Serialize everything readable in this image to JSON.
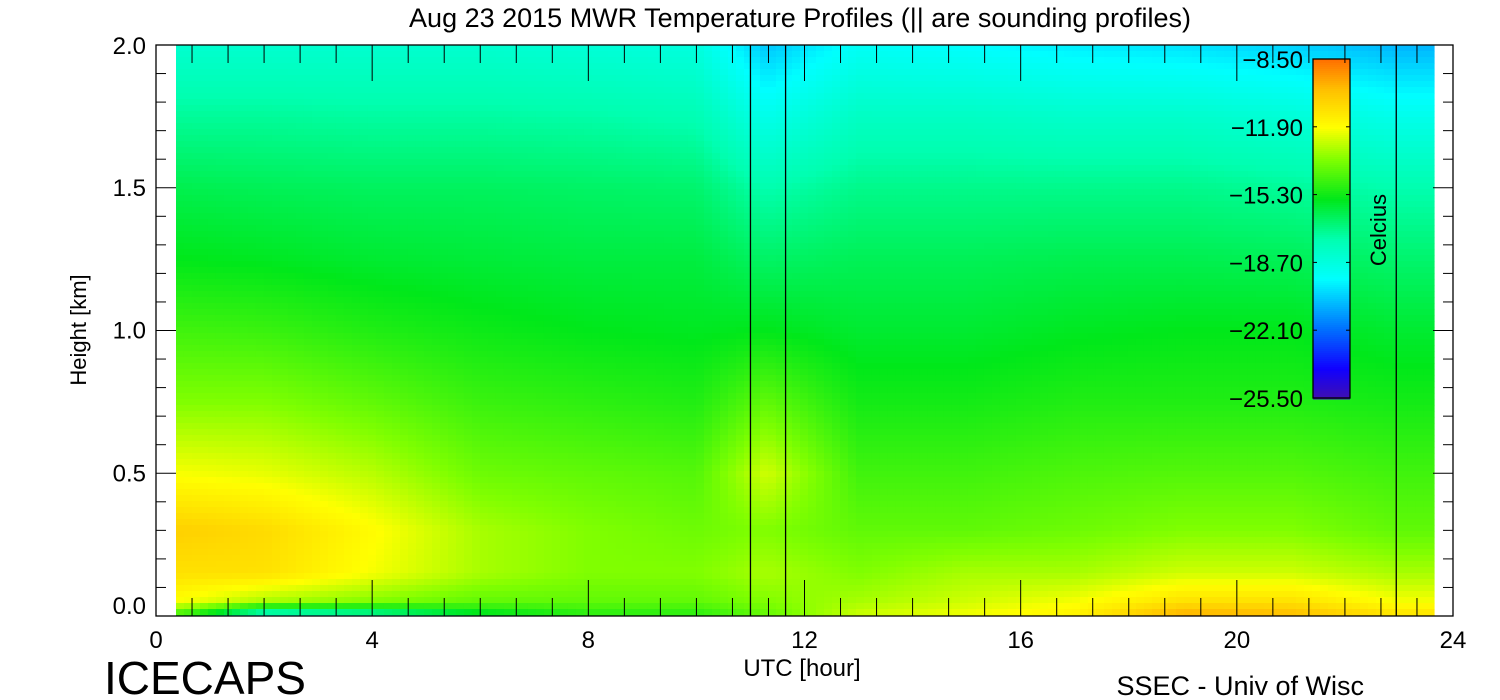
{
  "chart_data": {
    "type": "heatmap",
    "title": "Aug 23 2015 MWR Temperature Profiles (|| are sounding profiles)",
    "xlabel": "UTC [hour]",
    "ylabel": "Height [km]",
    "xlim": [
      0,
      24
    ],
    "ylim": [
      0,
      2.0
    ],
    "xticks": [
      "0",
      "4",
      "8",
      "12",
      "16",
      "20",
      "24"
    ],
    "yticks": [
      "0.0",
      "0.5",
      "1.0",
      "1.5",
      "2.0"
    ],
    "data_range_hours": [
      0.37,
      23.65
    ],
    "gap_hours": [
      11.0,
      11.65
    ],
    "sounding_profile_hours": [
      11.0,
      11.65,
      22.95
    ],
    "x": [
      0.5,
      2,
      4,
      6,
      8,
      10,
      11.3,
      13,
      15,
      17,
      19,
      21,
      23
    ],
    "heights": [
      0.0,
      0.05,
      0.15,
      0.3,
      0.5,
      0.75,
      1.0,
      1.25,
      1.5,
      1.75,
      2.0
    ],
    "values": [
      [
        -15,
        -19,
        -18,
        -16,
        -15,
        -15,
        -14,
        -12.5,
        -12,
        -11.5,
        -9.5,
        -9.8,
        -11
      ],
      [
        -12,
        -13,
        -13.5,
        -14,
        -14,
        -14,
        -13.5,
        -13,
        -12.5,
        -12,
        -11,
        -11,
        -12
      ],
      [
        -11,
        -11,
        -12,
        -13,
        -13.5,
        -13.5,
        -13,
        -13.5,
        -13,
        -13,
        -12.5,
        -12.5,
        -13
      ],
      [
        -10.5,
        -10.8,
        -11.8,
        -13,
        -13.5,
        -13.8,
        -13.5,
        -14,
        -14,
        -13.8,
        -13.5,
        -13.5,
        -14
      ],
      [
        -12,
        -12.2,
        -12.8,
        -13.8,
        -14,
        -14.2,
        -12.5,
        -14.5,
        -14.5,
        -14.3,
        -14.2,
        -14.2,
        -14.5
      ],
      [
        -13.5,
        -13.5,
        -14,
        -14.6,
        -14.8,
        -15,
        -14,
        -15.2,
        -15.2,
        -15,
        -15,
        -15,
        -15.2
      ],
      [
        -14.5,
        -14.6,
        -15,
        -15.3,
        -15.5,
        -15.6,
        -15.5,
        -15.8,
        -15.8,
        -15.6,
        -15.5,
        -15.5,
        -15.8
      ],
      [
        -15.5,
        -15.6,
        -15.8,
        -15.9,
        -16,
        -16,
        -16.5,
        -16.3,
        -16.3,
        -16.2,
        -16.2,
        -16.3,
        -16.6
      ],
      [
        -16.2,
        -16.3,
        -16.4,
        -16.4,
        -16.5,
        -16.6,
        -17.5,
        -17,
        -17,
        -17,
        -17,
        -17.2,
        -17.5
      ],
      [
        -17.2,
        -17.2,
        -17.3,
        -17.3,
        -17.4,
        -17.6,
        -19,
        -18,
        -18,
        -18.2,
        -18.2,
        -18.5,
        -19
      ],
      [
        -18.3,
        -18.3,
        -18.3,
        -18.3,
        -18.5,
        -18.7,
        -20.5,
        -19.3,
        -19.5,
        -19.8,
        -20,
        -20.3,
        -20.8
      ]
    ],
    "colorbar": {
      "label": "Celcius",
      "range": [
        -25.5,
        -8.5
      ],
      "tick_labels": [
        "-8.50",
        "-11.90",
        "-15.30",
        "-18.70",
        "-22.10",
        "-25.50"
      ],
      "stops": [
        [
          -25.5,
          "#4010b0"
        ],
        [
          -24.0,
          "#1000ff"
        ],
        [
          -22.0,
          "#0070ff"
        ],
        [
          -19.5,
          "#00ffff"
        ],
        [
          -17.5,
          "#00ffb0"
        ],
        [
          -15.5,
          "#00e81a"
        ],
        [
          -13.5,
          "#80ff00"
        ],
        [
          -11.9,
          "#ffff00"
        ],
        [
          -10.0,
          "#ffc000"
        ],
        [
          -8.5,
          "#ff7000"
        ]
      ]
    }
  },
  "footer": {
    "left": "ICECAPS",
    "right": "SSEC - Univ of Wisc"
  }
}
